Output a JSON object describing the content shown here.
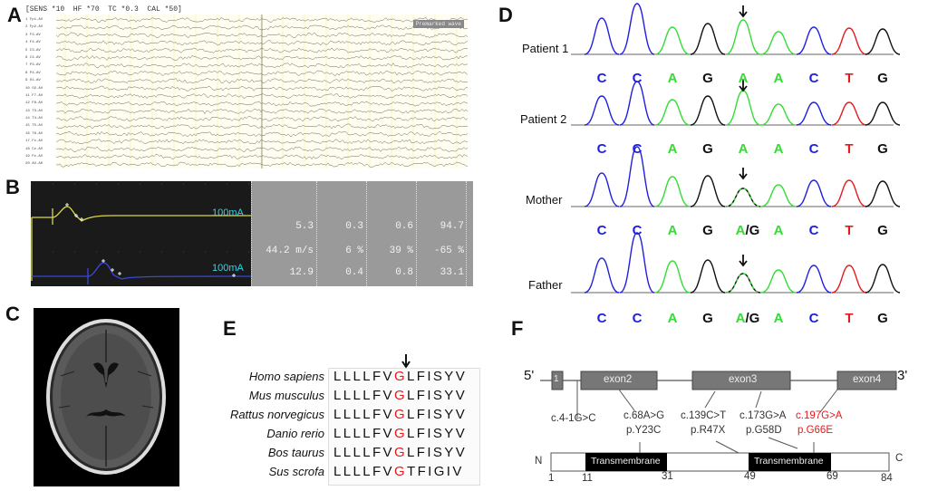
{
  "panels": {
    "A": {
      "letter": "A",
      "header": "[SENS *10  HF *70  TC *0.3  CAL *50]",
      "badge": "Premarked wave",
      "channels": [
        "1 Fp1-AV",
        "2 Fp2-AV",
        "3 F3-AV",
        "4 F4-AV",
        "5 C3-AV",
        "6 C4-AV",
        "7 P3-AV",
        "8 P4-AV",
        "9 O1-AV",
        "10 O2-AV",
        "11 F7-AV",
        "12 F8-AV",
        "13 T3-AV",
        "14 T4-AV",
        "15 T5-AV",
        "16 T6-AV",
        "17 Fz-AV",
        "18 Cz-AV",
        "19 Pz-AV",
        "20 AV-A0"
      ]
    },
    "B": {
      "letter": "B",
      "trace_labels": [
        "100mA",
        "100mA"
      ],
      "trace_colors": {
        "upper": "#d8d84a",
        "lower": "#3848d8"
      },
      "table": [
        [
          "5.3",
          "0.3",
          "0.6",
          "94.7"
        ],
        [
          "44.2 m/s",
          "6 %",
          "39 %",
          "-65 %"
        ],
        [
          "12.9",
          "0.4",
          "0.8",
          "33.1"
        ]
      ]
    },
    "C": {
      "letter": "C"
    },
    "D": {
      "letter": "D",
      "rows": [
        {
          "label": "Patient 1",
          "bases": [
            "C",
            "C",
            "A",
            "G",
            "A",
            "A",
            "C",
            "T",
            "G"
          ]
        },
        {
          "label": "Patient 2",
          "bases": [
            "C",
            "C",
            "A",
            "G",
            "A",
            "A",
            "C",
            "T",
            "G"
          ]
        },
        {
          "label": "Mother",
          "bases": [
            "C",
            "C",
            "A",
            "G",
            "A/G",
            "A",
            "C",
            "T",
            "G"
          ]
        },
        {
          "label": "Father",
          "bases": [
            "C",
            "C",
            "A",
            "G",
            "A/G",
            "A",
            "C",
            "T",
            "G"
          ]
        }
      ],
      "base_colors": {
        "A": "#33dd33",
        "C": "#1f1fe0",
        "G": "#111111",
        "T": "#e41a1c"
      }
    },
    "E": {
      "letter": "E",
      "rows": [
        {
          "species": "Homo sapiens",
          "pre": "LLLLFV",
          "mid": "G",
          "post": "LFISYV"
        },
        {
          "species": "Mus musculus",
          "pre": "LLLLFV",
          "mid": "G",
          "post": "LFISYV"
        },
        {
          "species": "Rattus norvegicus",
          "pre": "LLLLFV",
          "mid": "G",
          "post": "LFISYV"
        },
        {
          "species": "Danio rerio",
          "pre": "LLLLFV",
          "mid": "G",
          "post": "LFISYV"
        },
        {
          "species": "Bos taurus",
          "pre": "LLLLFV",
          "mid": "G",
          "post": "LFISYV"
        },
        {
          "species": "Sus scrofa",
          "pre": "LLLLFV",
          "mid": "G",
          "post": "TFIGIV"
        }
      ]
    },
    "F": {
      "letter": "F",
      "five_prime": "5'",
      "three_prime": "3'",
      "exons": [
        "1",
        "exon2",
        "exon3",
        "exon4"
      ],
      "variants": [
        {
          "c": "c.4-1G>C",
          "p": ""
        },
        {
          "c": "c.68A>G",
          "p": "p.Y23C"
        },
        {
          "c": "c.139C>T",
          "p": "p.R47X"
        },
        {
          "c": "c.173G>A",
          "p": "p.G58D"
        },
        {
          "c": "c.197G>A",
          "p": "p.G66E",
          "highlight": true
        }
      ],
      "protein": {
        "n": "N",
        "c": "C",
        "domain_label": "Transmembrane",
        "ticks": [
          "1",
          "11",
          "31",
          "49",
          "69",
          "84"
        ]
      },
      "highlight_color": "#e41a1c"
    }
  }
}
